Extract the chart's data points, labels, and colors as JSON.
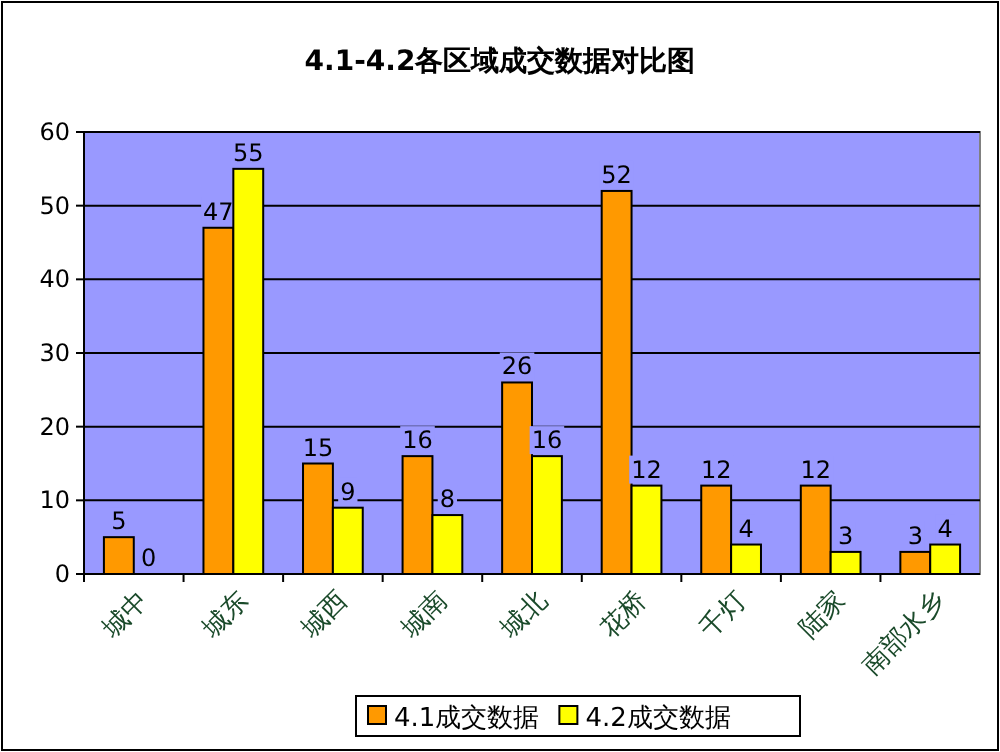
{
  "chart_data": {
    "type": "bar",
    "title": "4.1-4.2各区域成交数据对比图",
    "categories": [
      "城中",
      "城东",
      "城西",
      "城南",
      "城北",
      "花桥",
      "千灯",
      "陆家",
      "南部水乡"
    ],
    "series": [
      {
        "name": "4.1成交数据",
        "color": "#ff9900",
        "values": [
          5,
          47,
          15,
          16,
          26,
          52,
          12,
          12,
          3
        ]
      },
      {
        "name": "4.2成交数据",
        "color": "#ffff00",
        "values": [
          0,
          55,
          9,
          8,
          16,
          12,
          4,
          3,
          4
        ]
      }
    ],
    "ylim": [
      0,
      60
    ],
    "yticks": [
      0,
      10,
      20,
      30,
      40,
      50,
      60
    ],
    "grid": "y",
    "legend": "bottom",
    "data_labels": true
  }
}
